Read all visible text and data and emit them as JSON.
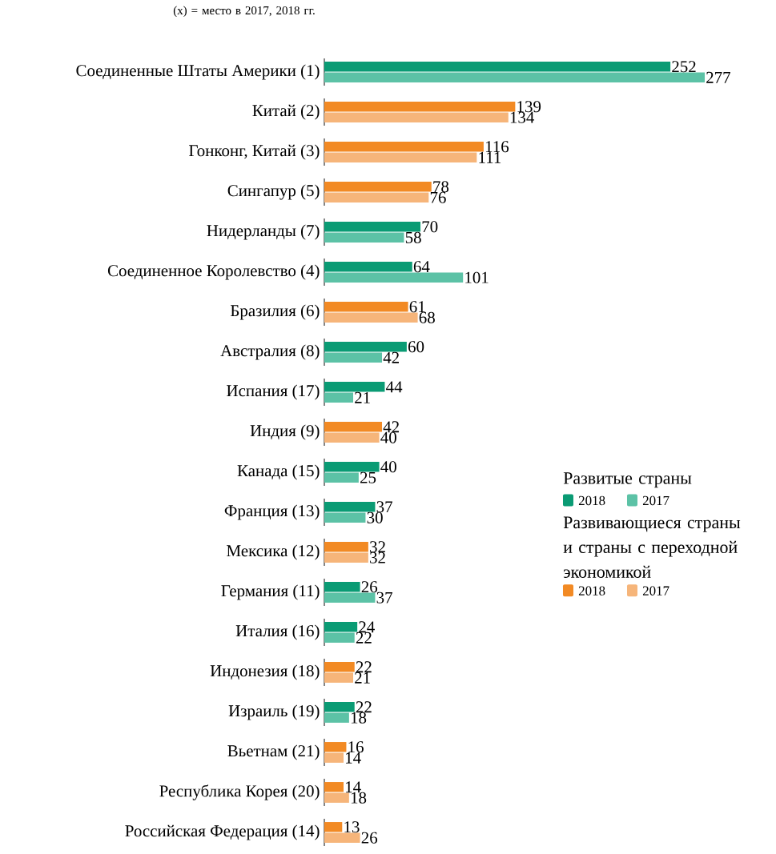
{
  "chart_data": {
    "type": "bar",
    "orientation": "horizontal",
    "data_labels": true,
    "legend": "right",
    "categories": [
      "Соединенные Штаты Америки (1)",
      "Китай (2)",
      "Гонконг, Китай (3)",
      "Сингапур (5)",
      "Нидерланды (7)",
      "Соединенное Королевство (4)",
      "Бразилия (6)",
      "Австралия (8)",
      "Испания (17)",
      "Индия (9)",
      "Канада (15)",
      "Франция (13)",
      "Мексика (12)",
      "Германия (11)",
      "Италия (16)",
      "Индонезия (18)",
      "Израиль (19)",
      "Вьетнам (21)",
      "Республика Корея (20)",
      "Российская Федерация (14)"
    ],
    "series": [
      {
        "name": "2018",
        "color": "#0a9b74",
        "values": [
          252,
          null,
          null,
          null,
          70,
          64,
          null,
          60,
          44,
          null,
          40,
          37,
          null,
          26,
          24,
          null,
          22,
          null,
          null,
          null
        ]
      },
      {
        "name": "2017",
        "color": "#5cc2a6",
        "values": [
          277,
          null,
          null,
          null,
          58,
          101,
          null,
          42,
          21,
          null,
          25,
          30,
          null,
          37,
          22,
          null,
          18,
          null,
          null,
          null
        ]
      },
      {
        "name": "2018",
        "color": "#f28a24",
        "values": [
          null,
          139,
          116,
          78,
          null,
          null,
          61,
          null,
          null,
          42,
          null,
          null,
          32,
          null,
          null,
          22,
          null,
          16,
          14,
          13
        ]
      },
      {
        "name": "2017",
        "color": "#f6b57a",
        "values": [
          null,
          134,
          111,
          76,
          null,
          null,
          68,
          null,
          null,
          40,
          null,
          null,
          32,
          null,
          null,
          21,
          null,
          14,
          18,
          26
        ]
      }
    ],
    "annotations": [
      "(x) = место в 2017, 2018 гг.",
      "Развитые страны",
      "Развивающиеся страны и страны с переходной экономикой"
    ]
  }
}
